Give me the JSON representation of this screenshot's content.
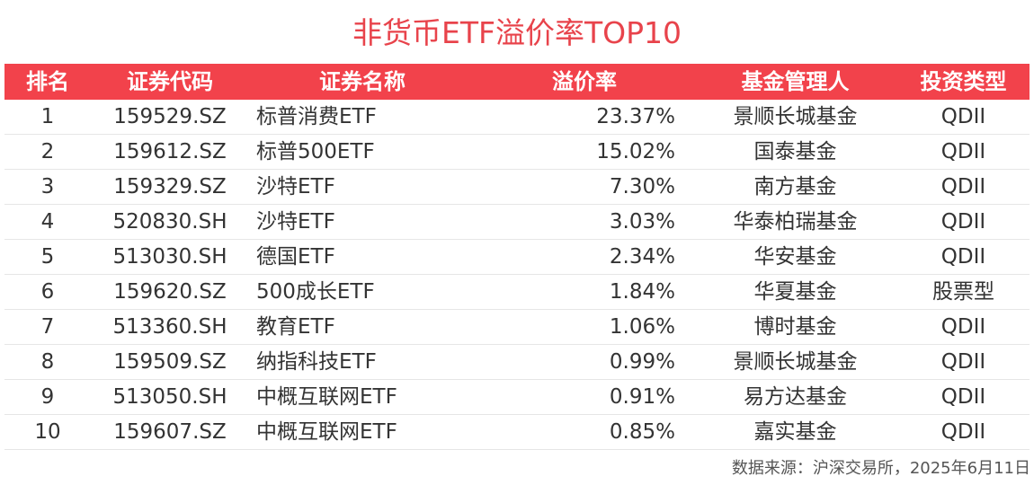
{
  "title": "非货币ETF溢价率TOP10",
  "table": {
    "headers": {
      "rank": "排名",
      "code": "证券代码",
      "name": "证券名称",
      "premium": "溢价率",
      "manager": "基金管理人",
      "type": "投资类型"
    },
    "rows": [
      {
        "rank": "1",
        "code": "159529.SZ",
        "name": "标普消费ETF",
        "premium": "23.37%",
        "manager": "景顺长城基金",
        "type": "QDII"
      },
      {
        "rank": "2",
        "code": "159612.SZ",
        "name": "标普500ETF",
        "premium": "15.02%",
        "manager": "国泰基金",
        "type": "QDII"
      },
      {
        "rank": "3",
        "code": "159329.SZ",
        "name": "沙特ETF",
        "premium": "7.30%",
        "manager": "南方基金",
        "type": "QDII"
      },
      {
        "rank": "4",
        "code": "520830.SH",
        "name": "沙特ETF",
        "premium": "3.03%",
        "manager": "华泰柏瑞基金",
        "type": "QDII"
      },
      {
        "rank": "5",
        "code": "513030.SH",
        "name": "德国ETF",
        "premium": "2.34%",
        "manager": "华安基金",
        "type": "QDII"
      },
      {
        "rank": "6",
        "code": "159620.SZ",
        "name": "500成长ETF",
        "premium": "1.84%",
        "manager": "华夏基金",
        "type": "股票型"
      },
      {
        "rank": "7",
        "code": "513360.SH",
        "name": "教育ETF",
        "premium": "1.06%",
        "manager": "博时基金",
        "type": "QDII"
      },
      {
        "rank": "8",
        "code": "159509.SZ",
        "name": "纳指科技ETF",
        "premium": "0.99%",
        "manager": "景顺长城基金",
        "type": "QDII"
      },
      {
        "rank": "9",
        "code": "513050.SH",
        "name": "中概互联网ETF",
        "premium": "0.91%",
        "manager": "易方达基金",
        "type": "QDII"
      },
      {
        "rank": "10",
        "code": "159607.SZ",
        "name": "中概互联网ETF",
        "premium": "0.85%",
        "manager": "嘉实基金",
        "type": "QDII"
      }
    ]
  },
  "source": "数据来源：沪深交易所，2025年6月11日",
  "colors": {
    "accent": "#f2424b",
    "title": "#e8434b"
  }
}
